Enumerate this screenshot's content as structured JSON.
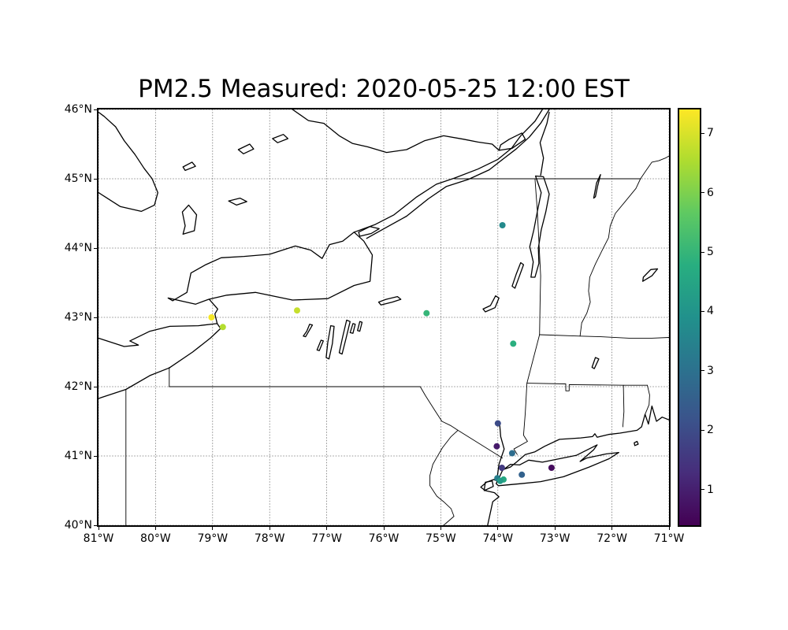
{
  "chart_data": {
    "type": "scatter",
    "title": "PM2.5 Measured: 2020-05-25 12:00 EST",
    "x_axis": {
      "range": [
        -81,
        -71
      ],
      "ticks": [
        {
          "value": -81,
          "label": "81°W"
        },
        {
          "value": -80,
          "label": "80°W"
        },
        {
          "value": -79,
          "label": "79°W"
        },
        {
          "value": -78,
          "label": "78°W"
        },
        {
          "value": -77,
          "label": "77°W"
        },
        {
          "value": -76,
          "label": "76°W"
        },
        {
          "value": -75,
          "label": "75°W"
        },
        {
          "value": -74,
          "label": "74°W"
        },
        {
          "value": -73,
          "label": "73°W"
        },
        {
          "value": -72,
          "label": "72°W"
        },
        {
          "value": -71,
          "label": "71°W"
        }
      ]
    },
    "y_axis": {
      "range": [
        40,
        46
      ],
      "ticks": [
        {
          "value": 40,
          "label": "40°N"
        },
        {
          "value": 41,
          "label": "41°N"
        },
        {
          "value": 42,
          "label": "42°N"
        },
        {
          "value": 43,
          "label": "43°N"
        },
        {
          "value": 44,
          "label": "44°N"
        },
        {
          "value": 45,
          "label": "45°N"
        },
        {
          "value": 46,
          "label": "46°N"
        }
      ]
    },
    "grid": {
      "style": "dotted",
      "color": "#000000"
    },
    "points": [
      {
        "lon": -79.02,
        "lat": 43.0,
        "value": 7.3
      },
      {
        "lon": -78.82,
        "lat": 42.86,
        "value": 6.6
      },
      {
        "lon": -77.52,
        "lat": 43.1,
        "value": 6.8
      },
      {
        "lon": -75.25,
        "lat": 43.06,
        "value": 5.0
      },
      {
        "lon": -73.92,
        "lat": 44.33,
        "value": 3.7
      },
      {
        "lon": -73.73,
        "lat": 42.62,
        "value": 4.8
      },
      {
        "lon": -74.0,
        "lat": 41.47,
        "value": 2.0
      },
      {
        "lon": -74.02,
        "lat": 41.14,
        "value": 0.9
      },
      {
        "lon": -73.75,
        "lat": 41.04,
        "value": 2.9
      },
      {
        "lon": -73.93,
        "lat": 40.83,
        "value": 1.6
      },
      {
        "lon": -73.06,
        "lat": 40.83,
        "value": 0.6
      },
      {
        "lon": -73.58,
        "lat": 40.73,
        "value": 2.6
      },
      {
        "lon": -74.01,
        "lat": 40.68,
        "value": 3.4
      },
      {
        "lon": -73.9,
        "lat": 40.66,
        "value": 4.6
      },
      {
        "lon": -73.96,
        "lat": 40.64,
        "value": 4.2
      }
    ],
    "colorbar": {
      "min": 0.4,
      "max": 7.4,
      "ticks": [
        1,
        2,
        3,
        4,
        5,
        6,
        7
      ],
      "colormap": "viridis",
      "stops": [
        "#440154",
        "#472d7b",
        "#3b528b",
        "#2c728e",
        "#21918c",
        "#28ae80",
        "#5ec962",
        "#addc30",
        "#fde725"
      ]
    }
  }
}
